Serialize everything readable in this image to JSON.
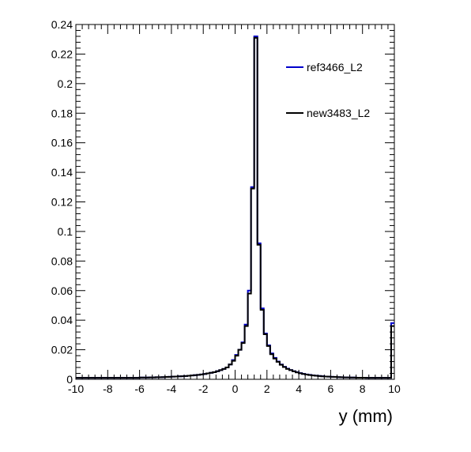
{
  "chart_data": {
    "type": "line",
    "xlabel": "y (mm)",
    "ylabel": "",
    "xlim": [
      -10,
      10
    ],
    "ylim": [
      0,
      0.24
    ],
    "x_ticks": [
      "-10",
      "-8",
      "-6",
      "-4",
      "-2",
      "0",
      "2",
      "4",
      "6",
      "8",
      "10"
    ],
    "y_ticks": [
      "0",
      "0.02",
      "0.04",
      "0.06",
      "0.08",
      "0.1",
      "0.12",
      "0.14",
      "0.16",
      "0.18",
      "0.2",
      "0.22",
      "0.24"
    ],
    "legend_position": "top-right",
    "bin_edges_start": -10,
    "bin_width": 0.2,
    "series": [
      {
        "name": "ref3466_L2",
        "color": "#0000cc",
        "values": [
          0.001,
          0.001,
          0.001,
          0.001,
          0.001,
          0.001,
          0.001,
          0.001,
          0.001,
          0.001,
          0.001,
          0.001,
          0.001,
          0.001,
          0.001,
          0.001,
          0.001,
          0.001,
          0.001,
          0.001,
          0.0012,
          0.0012,
          0.0012,
          0.0013,
          0.0013,
          0.0014,
          0.0014,
          0.0015,
          0.0016,
          0.0017,
          0.0018,
          0.0019,
          0.002,
          0.0021,
          0.0022,
          0.0024,
          0.0026,
          0.0028,
          0.003,
          0.0033,
          0.0036,
          0.004,
          0.0044,
          0.0048,
          0.0055,
          0.0062,
          0.007,
          0.008,
          0.01,
          0.013,
          0.0165,
          0.02,
          0.025,
          0.037,
          0.06,
          0.13,
          0.232,
          0.092,
          0.048,
          0.031,
          0.023,
          0.0175,
          0.0145,
          0.012,
          0.01,
          0.0085,
          0.0072,
          0.0063,
          0.0055,
          0.0048,
          0.0042,
          0.0037,
          0.0033,
          0.003,
          0.0027,
          0.0025,
          0.0023,
          0.0021,
          0.0019,
          0.0018,
          0.0017,
          0.0016,
          0.0015,
          0.0014,
          0.0013,
          0.0013,
          0.0012,
          0.0012,
          0.0011,
          0.0011,
          0.0011,
          0.001,
          0.001,
          0.001,
          0.001,
          0.001,
          0.001,
          0.001,
          0.001,
          0.038
        ]
      },
      {
        "name": "new3483_L2",
        "color": "#000000",
        "values": [
          0.001,
          0.001,
          0.001,
          0.001,
          0.001,
          0.001,
          0.001,
          0.001,
          0.001,
          0.001,
          0.001,
          0.001,
          0.001,
          0.001,
          0.001,
          0.001,
          0.001,
          0.001,
          0.001,
          0.001,
          0.0012,
          0.0012,
          0.0012,
          0.0013,
          0.0013,
          0.0014,
          0.0014,
          0.0015,
          0.0016,
          0.0017,
          0.0018,
          0.0019,
          0.002,
          0.0021,
          0.0022,
          0.0024,
          0.0026,
          0.0028,
          0.003,
          0.0033,
          0.0036,
          0.004,
          0.0044,
          0.0048,
          0.0055,
          0.0062,
          0.007,
          0.008,
          0.01,
          0.0125,
          0.016,
          0.02,
          0.0245,
          0.036,
          0.058,
          0.129,
          0.231,
          0.091,
          0.047,
          0.0305,
          0.0225,
          0.017,
          0.014,
          0.0118,
          0.0098,
          0.0083,
          0.007,
          0.0062,
          0.0054,
          0.0047,
          0.0041,
          0.0036,
          0.0032,
          0.0029,
          0.0026,
          0.0024,
          0.0022,
          0.002,
          0.0019,
          0.0018,
          0.0017,
          0.0016,
          0.0015,
          0.0014,
          0.0013,
          0.0013,
          0.0012,
          0.0012,
          0.0011,
          0.0011,
          0.0011,
          0.001,
          0.001,
          0.001,
          0.001,
          0.001,
          0.001,
          0.001,
          0.001,
          0.036
        ]
      }
    ]
  }
}
